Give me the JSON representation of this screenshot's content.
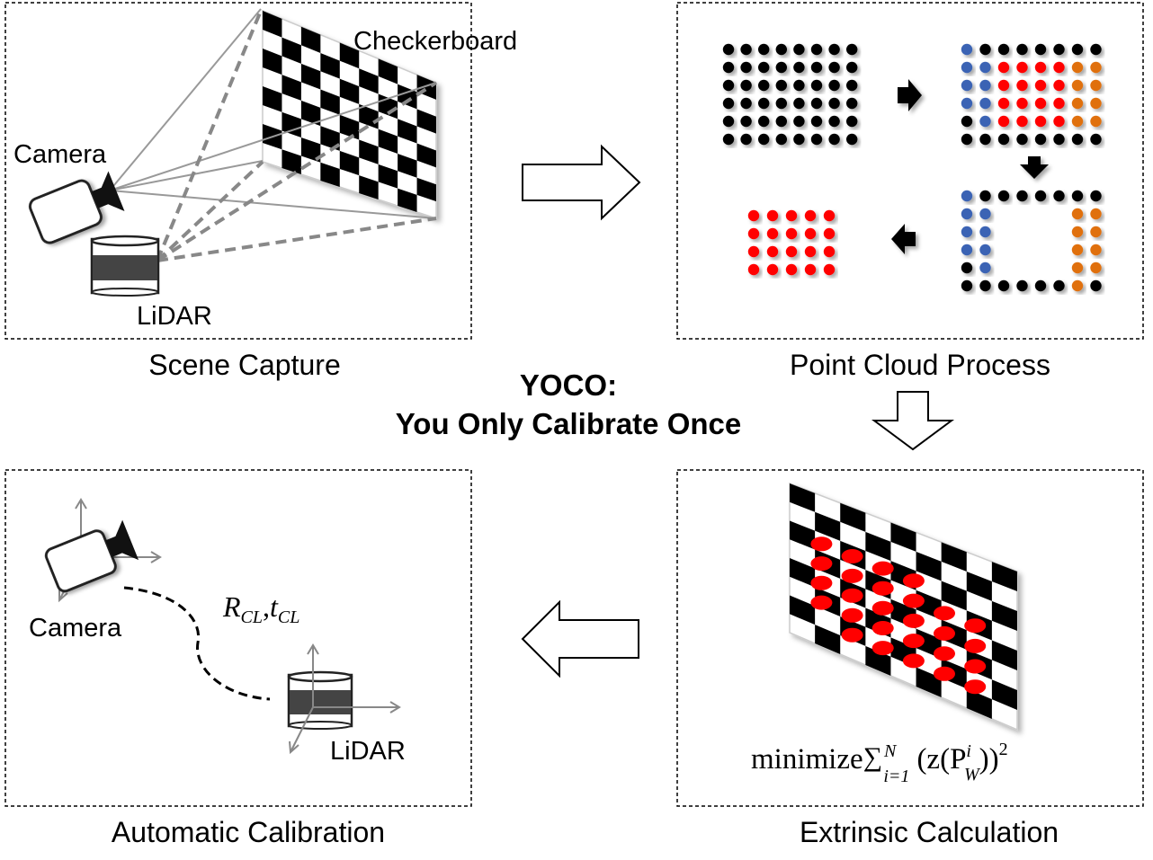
{
  "title": {
    "line1": "YOCO:",
    "line2": "You Only Calibrate Once"
  },
  "panels": {
    "scene_capture": {
      "caption": "Scene Capture",
      "labels": {
        "checkerboard": "Checkerboard",
        "camera": "Camera",
        "lidar": "LiDAR"
      }
    },
    "point_cloud_process": {
      "caption": "Point Cloud Process"
    },
    "extrinsic_calculation": {
      "caption": "Extrinsic Calculation",
      "formula": {
        "prefix": "minimize",
        "sum": "∑",
        "sup": "N",
        "sub": "i=1",
        "body": "(z(P",
        "p_sup": "i",
        "p_sub": "W",
        "close": "))",
        "exp": "2"
      }
    },
    "automatic_calibration": {
      "caption": "Automatic Calibration",
      "labels": {
        "camera": "Camera",
        "lidar": "LiDAR"
      },
      "transform": {
        "R": "R",
        "R_sub": "CL",
        "sep": ",",
        "t": "t",
        "t_sub": "CL"
      }
    }
  },
  "colors": {
    "black_point": "#000000",
    "red_point": "#ff0000",
    "blue_point": "#3a64b4",
    "orange_point": "#e07010",
    "lidar_band": "#444444",
    "dashed_ray": "#888888",
    "ray": "#999999"
  }
}
